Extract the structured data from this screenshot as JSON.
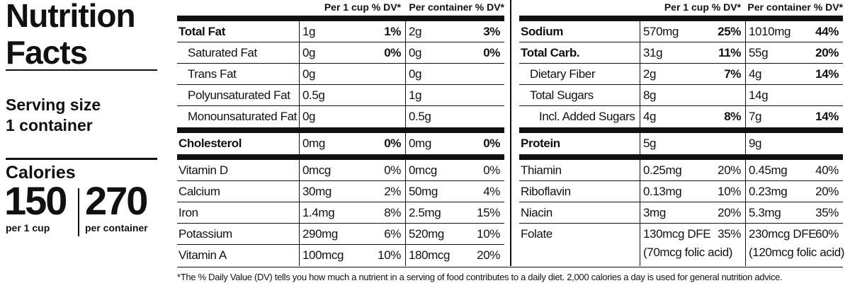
{
  "panel": {
    "title_line1": "Nutrition",
    "title_line2": "Facts",
    "serving_label": "Serving size",
    "serving_size": "1 container",
    "calories_label": "Calories",
    "calories": [
      {
        "value": 150,
        "basis": "per 1 cup"
      },
      {
        "value": 270,
        "basis": "per container"
      }
    ]
  },
  "tables": [
    {
      "headers": [
        "Per 1 cup % DV*",
        "Per container % DV*"
      ],
      "sections": [
        [
          {
            "name": "Total Fat",
            "cup": "1g",
            "cup_dv": "1%",
            "cont": "2g",
            "cont_dv": "3%",
            "indent": 0
          },
          {
            "name": "Saturated Fat",
            "cup": "0g",
            "cup_dv": "0%",
            "cont": "0g",
            "cont_dv": "0%",
            "indent": 1
          },
          {
            "name": "Trans Fat",
            "cup": "0g",
            "cont": "0g",
            "indent": 1
          },
          {
            "name": "Polyunsaturated Fat",
            "cup": "0.5g",
            "cont": "1g",
            "indent": 1
          },
          {
            "name": "Monounsaturated Fat",
            "cup": "0g",
            "cont": "0.5g",
            "indent": 1
          }
        ],
        [
          {
            "name": "Cholesterol",
            "cup": "0mg",
            "cup_dv": "0%",
            "cont": "0mg",
            "cont_dv": "0%",
            "indent": 0
          }
        ],
        [
          {
            "name": "Vitamin D",
            "cup": "0mcg",
            "cup_dv": "0%",
            "cont": "0mcg",
            "cont_dv": "0%",
            "indent": 0
          },
          {
            "name": "Calcium",
            "cup": "30mg",
            "cup_dv": "2%",
            "cont": "50mg",
            "cont_dv": "4%",
            "indent": 0
          },
          {
            "name": "Iron",
            "cup": "1.4mg",
            "cup_dv": "8%",
            "cont": "2.5mg",
            "cont_dv": "15%",
            "indent": 0
          },
          {
            "name": "Potassium",
            "cup": "290mg",
            "cup_dv": "6%",
            "cont": "520mg",
            "cont_dv": "10%",
            "indent": 0
          },
          {
            "name": "Vitamin A",
            "cup": "100mcg",
            "cup_dv": "10%",
            "cont": "180mcg",
            "cont_dv": "20%",
            "indent": 0
          }
        ]
      ]
    },
    {
      "headers": [
        "Per 1 cup % DV*",
        "Per container % DV*"
      ],
      "sections": [
        [
          {
            "name": "Sodium",
            "cup": "570mg",
            "cup_dv": "25%",
            "cont": "1010mg",
            "cont_dv": "44%",
            "indent": 0
          },
          {
            "name": "Total Carb.",
            "cup": "31g",
            "cup_dv": "11%",
            "cont": "55g",
            "cont_dv": "20%",
            "indent": 0
          },
          {
            "name": "Dietary Fiber",
            "cup": "2g",
            "cup_dv": "7%",
            "cont": "4g",
            "cont_dv": "14%",
            "indent": 1
          },
          {
            "name": "Total Sugars",
            "cup": "8g",
            "cont": "14g",
            "indent": 1
          },
          {
            "name": "Incl. Added Sugars",
            "cup": "4g",
            "cup_dv": "8%",
            "cont": "7g",
            "cont_dv": "14%",
            "indent": 2
          }
        ],
        [
          {
            "name": "Protein",
            "cup": "5g",
            "cont": "9g",
            "indent": 0
          }
        ],
        [
          {
            "name": "Thiamin",
            "cup": "0.25mg",
            "cup_dv": "20%",
            "cont": "0.45mg",
            "cont_dv": "40%",
            "indent": 0
          },
          {
            "name": "Riboflavin",
            "cup": "0.13mg",
            "cup_dv": "10%",
            "cont": "0.23mg",
            "cont_dv": "20%",
            "indent": 0
          },
          {
            "name": "Niacin",
            "cup": "3mg",
            "cup_dv": "20%",
            "cont": "5.3mg",
            "cont_dv": "35%",
            "indent": 0
          },
          {
            "name": "Folate",
            "cup": "130mcg DFE",
            "cup_dv": "35%",
            "cup_note": "(70mcg folic acid)",
            "cont": "230mcg DFE",
            "cont_dv": "60%",
            "cont_note": "(120mcg folic acid)",
            "indent": 0
          }
        ]
      ]
    }
  ],
  "footnote": "*The % Daily Value (DV) tells you how much a nutrient in a serving of food contributes to a daily diet. 2,000 calories a day is used for general nutrition advice."
}
